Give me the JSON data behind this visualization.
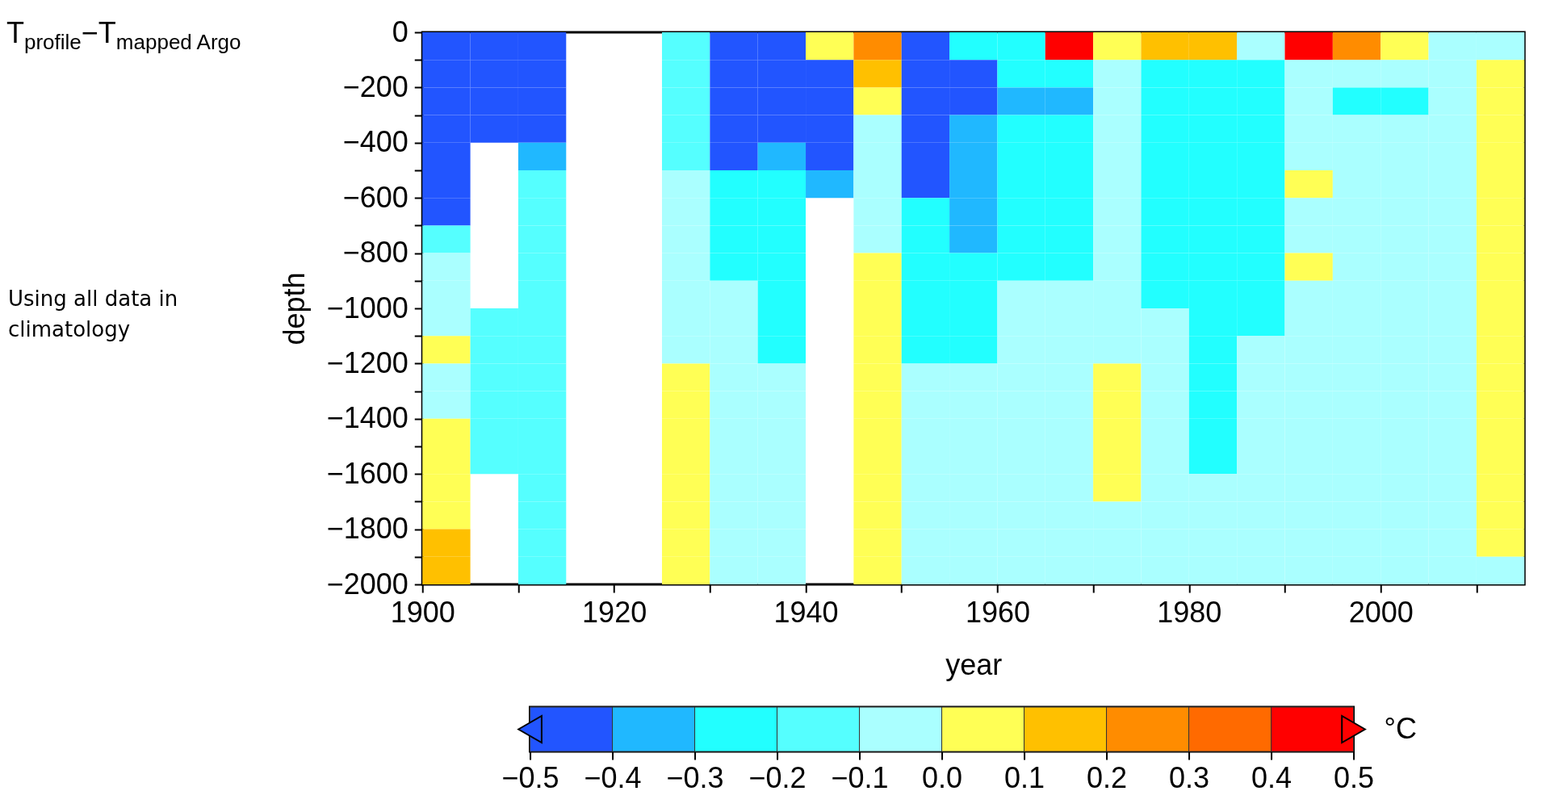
{
  "chart_data": {
    "type": "heatmap",
    "title": "T$_{profile}$−T$_{mapped Argo}$",
    "annotations": [
      "Using all data in climatology"
    ],
    "xlabel": "year",
    "ylabel": "depth",
    "clabel": "°C",
    "x": [
      1902.5,
      1907.5,
      1912.5,
      1917.5,
      1922.5,
      1927.5,
      1932.5,
      1937.5,
      1942.5,
      1947.5,
      1952.5,
      1957.5,
      1962.5,
      1967.5,
      1972.5,
      1977.5,
      1982.5,
      1987.5,
      1992.5,
      1997.5,
      2002.5,
      2007.5,
      2012.5
    ],
    "y": [
      -50,
      -150,
      -250,
      -350,
      -450,
      -550,
      -650,
      -750,
      -850,
      -950,
      -1050,
      -1150,
      -1250,
      -1350,
      -1450,
      -1550,
      -1650,
      -1750,
      -1850,
      -1950
    ],
    "xlim": [
      1900,
      2015
    ],
    "ylim": [
      -2000,
      0
    ],
    "xticks": [
      1900,
      {
        "value": 1910,
        "label": null
      },
      1920,
      {
        "value": 1930,
        "label": null
      },
      1940,
      {
        "value": 1950,
        "label": null
      },
      1960,
      {
        "value": 1970,
        "label": null
      },
      1980,
      {
        "value": 1990,
        "label": null
      },
      2000,
      {
        "value": 2010,
        "label": null
      }
    ],
    "yticks": [
      0,
      {
        "value": -100,
        "label": null
      },
      {
        "value": -200,
        "label": "−200"
      },
      {
        "value": -300,
        "label": null
      },
      {
        "value": -400,
        "label": "−400"
      },
      {
        "value": -500,
        "label": null
      },
      {
        "value": -600,
        "label": "−600"
      },
      {
        "value": -700,
        "label": null
      },
      {
        "value": -800,
        "label": "−800"
      },
      {
        "value": -900,
        "label": null
      },
      {
        "value": -1000,
        "label": "−1000"
      },
      {
        "value": -1100,
        "label": null
      },
      {
        "value": -1200,
        "label": "−1200"
      },
      {
        "value": -1300,
        "label": null
      },
      {
        "value": -1400,
        "label": "−1400"
      },
      {
        "value": -1500,
        "label": null
      },
      {
        "value": -1600,
        "label": "−1600"
      },
      {
        "value": -1700,
        "label": null
      },
      {
        "value": -1800,
        "label": "−1800"
      },
      {
        "value": -1900,
        "label": null
      },
      {
        "value": -2000,
        "label": "−2000"
      }
    ],
    "clim": [
      -0.5,
      0.5
    ],
    "cticks": [
      {
        "value": -0.5,
        "label": "−0.5"
      },
      {
        "value": -0.4,
        "label": "−0.4"
      },
      {
        "value": -0.3,
        "label": "−0.3"
      },
      {
        "value": -0.2,
        "label": "−0.2"
      },
      {
        "value": -0.1,
        "label": "−0.1"
      },
      {
        "value": 0,
        "label": "0.0"
      },
      0.1,
      0.2,
      0.3,
      0.4,
      0.5
    ],
    "colors": [
      "#2255ff",
      "#20b8ff",
      "#22ffff",
      "#55ffff",
      "#aaffff",
      "#ffff55",
      "#ffc000",
      "#ff8c00",
      "#ff6a00",
      "#ff0000"
    ],
    "cells": [
      [
        -0.45,
        -0.45,
        -0.45,
        null,
        null,
        -0.15,
        -0.45,
        -0.45,
        0.05,
        0.25,
        -0.45,
        -0.25,
        -0.25,
        0.45,
        0.05,
        0.15,
        0.15,
        -0.05,
        0.45,
        0.25,
        0.05,
        -0.05,
        -0.05
      ],
      [
        -0.45,
        -0.45,
        -0.45,
        null,
        null,
        -0.15,
        -0.45,
        -0.45,
        -0.45,
        0.15,
        -0.45,
        -0.45,
        -0.25,
        -0.25,
        -0.05,
        -0.25,
        -0.25,
        -0.25,
        -0.05,
        -0.05,
        -0.05,
        -0.05,
        0.05
      ],
      [
        -0.45,
        -0.45,
        -0.45,
        null,
        null,
        -0.15,
        -0.45,
        -0.45,
        -0.45,
        0.05,
        -0.45,
        -0.45,
        -0.35,
        -0.35,
        -0.05,
        -0.25,
        -0.25,
        -0.25,
        -0.05,
        -0.25,
        -0.25,
        -0.05,
        0.05
      ],
      [
        -0.45,
        -0.45,
        -0.45,
        null,
        null,
        -0.15,
        -0.45,
        -0.45,
        -0.45,
        -0.05,
        -0.45,
        -0.35,
        -0.25,
        -0.25,
        -0.05,
        -0.25,
        -0.25,
        -0.25,
        -0.05,
        -0.05,
        -0.05,
        -0.05,
        0.05
      ],
      [
        -0.45,
        null,
        -0.35,
        null,
        null,
        -0.15,
        -0.45,
        -0.35,
        -0.45,
        -0.05,
        -0.45,
        -0.35,
        -0.25,
        -0.25,
        -0.05,
        -0.25,
        -0.25,
        -0.25,
        -0.05,
        -0.05,
        -0.05,
        -0.05,
        0.05
      ],
      [
        -0.45,
        null,
        -0.15,
        null,
        null,
        -0.05,
        -0.25,
        -0.25,
        -0.35,
        -0.05,
        -0.45,
        -0.35,
        -0.25,
        -0.25,
        -0.05,
        -0.25,
        -0.25,
        -0.25,
        0.05,
        -0.05,
        -0.05,
        -0.05,
        0.05
      ],
      [
        -0.45,
        null,
        -0.15,
        null,
        null,
        -0.05,
        -0.25,
        -0.25,
        null,
        -0.05,
        -0.25,
        -0.35,
        -0.25,
        -0.25,
        -0.05,
        -0.25,
        -0.25,
        -0.25,
        -0.05,
        -0.05,
        -0.05,
        -0.05,
        0.05
      ],
      [
        -0.15,
        null,
        -0.15,
        null,
        null,
        -0.05,
        -0.25,
        -0.25,
        null,
        -0.05,
        -0.25,
        -0.35,
        -0.25,
        -0.25,
        -0.05,
        -0.25,
        -0.25,
        -0.25,
        -0.05,
        -0.05,
        -0.05,
        -0.05,
        0.05
      ],
      [
        -0.05,
        null,
        -0.15,
        null,
        null,
        -0.05,
        -0.25,
        -0.25,
        null,
        0.05,
        -0.25,
        -0.25,
        -0.25,
        -0.25,
        -0.05,
        -0.25,
        -0.25,
        -0.25,
        0.05,
        -0.05,
        -0.05,
        -0.05,
        0.05
      ],
      [
        -0.05,
        null,
        -0.15,
        null,
        null,
        -0.05,
        -0.05,
        -0.25,
        null,
        0.05,
        -0.25,
        -0.25,
        -0.05,
        -0.05,
        -0.05,
        -0.25,
        -0.25,
        -0.25,
        -0.05,
        -0.05,
        -0.05,
        -0.05,
        0.05
      ],
      [
        -0.05,
        -0.15,
        -0.15,
        null,
        null,
        -0.05,
        -0.05,
        -0.25,
        null,
        0.05,
        -0.25,
        -0.25,
        -0.05,
        -0.05,
        -0.05,
        -0.05,
        -0.25,
        -0.25,
        -0.05,
        -0.05,
        -0.05,
        -0.05,
        0.05
      ],
      [
        0.05,
        -0.15,
        -0.15,
        null,
        null,
        -0.05,
        -0.05,
        -0.25,
        null,
        0.05,
        -0.25,
        -0.25,
        -0.05,
        -0.05,
        -0.05,
        -0.05,
        -0.25,
        -0.05,
        -0.05,
        -0.05,
        -0.05,
        -0.05,
        0.05
      ],
      [
        -0.05,
        -0.15,
        -0.15,
        null,
        null,
        0.05,
        -0.05,
        -0.05,
        null,
        0.05,
        -0.05,
        -0.05,
        -0.05,
        -0.05,
        0.05,
        -0.05,
        -0.25,
        -0.05,
        -0.05,
        -0.05,
        -0.05,
        -0.05,
        0.05
      ],
      [
        -0.05,
        -0.15,
        -0.15,
        null,
        null,
        0.05,
        -0.05,
        -0.05,
        null,
        0.05,
        -0.05,
        -0.05,
        -0.05,
        -0.05,
        0.05,
        -0.05,
        -0.25,
        -0.05,
        -0.05,
        -0.05,
        -0.05,
        -0.05,
        0.05
      ],
      [
        0.05,
        -0.15,
        -0.15,
        null,
        null,
        0.05,
        -0.05,
        -0.05,
        null,
        0.05,
        -0.05,
        -0.05,
        -0.05,
        -0.05,
        0.05,
        -0.05,
        -0.25,
        -0.05,
        -0.05,
        -0.05,
        -0.05,
        -0.05,
        0.05
      ],
      [
        0.05,
        -0.15,
        -0.15,
        null,
        null,
        0.05,
        -0.05,
        -0.05,
        null,
        0.05,
        -0.05,
        -0.05,
        -0.05,
        -0.05,
        0.05,
        -0.05,
        -0.25,
        -0.05,
        -0.05,
        -0.05,
        -0.05,
        -0.05,
        0.05
      ],
      [
        0.05,
        null,
        -0.15,
        null,
        null,
        0.05,
        -0.05,
        -0.05,
        null,
        0.05,
        -0.05,
        -0.05,
        -0.05,
        -0.05,
        0.05,
        -0.05,
        -0.05,
        -0.05,
        -0.05,
        -0.05,
        -0.05,
        -0.05,
        0.05
      ],
      [
        0.05,
        null,
        -0.15,
        null,
        null,
        0.05,
        -0.05,
        -0.05,
        null,
        0.05,
        -0.05,
        -0.05,
        -0.05,
        -0.05,
        -0.05,
        -0.05,
        -0.05,
        -0.05,
        -0.05,
        -0.05,
        -0.05,
        -0.05,
        0.05
      ],
      [
        0.15,
        null,
        -0.15,
        null,
        null,
        0.05,
        -0.05,
        -0.05,
        null,
        0.05,
        -0.05,
        -0.05,
        -0.05,
        -0.05,
        -0.05,
        -0.05,
        -0.05,
        -0.05,
        -0.05,
        -0.05,
        -0.05,
        -0.05,
        0.05
      ],
      [
        0.15,
        null,
        -0.15,
        null,
        null,
        0.05,
        -0.05,
        -0.05,
        null,
        0.05,
        -0.05,
        -0.05,
        -0.05,
        -0.05,
        -0.05,
        -0.05,
        -0.05,
        -0.05,
        -0.05,
        -0.05,
        -0.05,
        -0.05,
        -0.05
      ]
    ]
  }
}
